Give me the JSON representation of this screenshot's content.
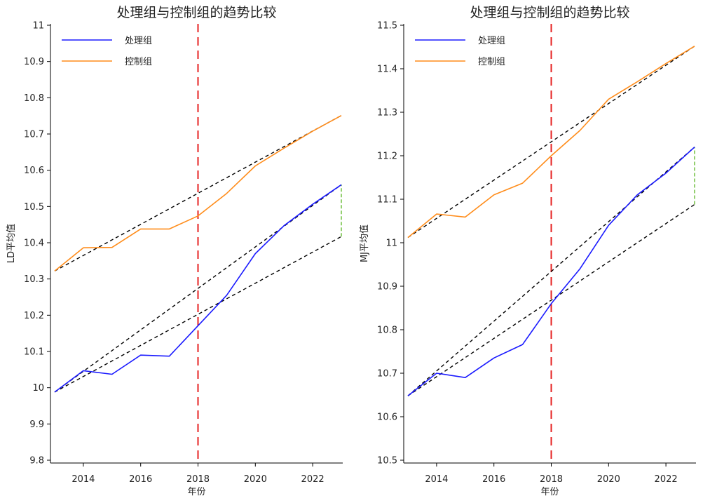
{
  "chart_data": [
    {
      "type": "line",
      "title": "处理组与控制组的趋势比较",
      "xlabel": "年份",
      "ylabel": "LD平均值",
      "xlim": [
        2013,
        2023
      ],
      "ylim": [
        9.8,
        11
      ],
      "x_ticks": [
        2014,
        2016,
        2018,
        2020,
        2022
      ],
      "y_ticks": [
        9.8,
        9.9,
        10,
        10.1,
        10.2,
        10.3,
        10.4,
        10.5,
        10.6,
        10.7,
        10.8,
        10.9,
        11
      ],
      "y_tick_labels": [
        "9.8",
        "9.9",
        "10",
        "10.1",
        "10.2",
        "10.3",
        "10.4",
        "10.5",
        "10.6",
        "10.7",
        "10.8",
        "10.9",
        "11"
      ],
      "legend": "top-left",
      "grid": false,
      "x": [
        2013,
        2014,
        2015,
        2016,
        2017,
        2018,
        2019,
        2020,
        2021,
        2022,
        2023
      ],
      "series": [
        {
          "name": "处理组",
          "color": "#1a1aff",
          "values": [
            9.988,
            10.047,
            10.037,
            10.09,
            10.087,
            10.171,
            10.255,
            10.37,
            10.447,
            10.506,
            10.56
          ]
        },
        {
          "name": "控制组",
          "color": "#ff8c1a",
          "values": [
            10.322,
            10.386,
            10.387,
            10.438,
            10.438,
            10.474,
            10.536,
            10.612,
            10.661,
            10.708,
            10.751
          ]
        }
      ],
      "trend_lines": [
        {
          "color": "#000000",
          "from": [
            2013,
            10.322
          ],
          "to": [
            2023,
            10.751
          ]
        },
        {
          "color": "#000000",
          "from": [
            2013,
            9.988
          ],
          "to": [
            2023,
            10.56
          ]
        },
        {
          "color": "#000000",
          "from": [
            2013,
            9.988
          ],
          "to": [
            2023,
            10.417
          ]
        }
      ],
      "gap_line": {
        "color": "#66bb33",
        "x": 2023,
        "from": 10.417,
        "to": 10.56
      },
      "event_line": {
        "color": "#e62222",
        "x": 2018
      }
    },
    {
      "type": "line",
      "title": "处理组与控制组的趋势比较",
      "xlabel": "年份",
      "ylabel": "MJ平均值",
      "xlim": [
        2013,
        2023
      ],
      "ylim": [
        10.5,
        11.5
      ],
      "x_ticks": [
        2014,
        2016,
        2018,
        2020,
        2022
      ],
      "y_ticks": [
        10.5,
        10.6,
        10.7,
        10.8,
        10.9,
        11,
        11.1,
        11.2,
        11.3,
        11.4,
        11.5
      ],
      "y_tick_labels": [
        "10.5",
        "10.6",
        "10.7",
        "10.8",
        "10.9",
        "11",
        "11.1",
        "11.2",
        "11.3",
        "11.4",
        "11.5"
      ],
      "legend": "top-left",
      "grid": false,
      "x": [
        2013,
        2014,
        2015,
        2016,
        2017,
        2018,
        2019,
        2020,
        2021,
        2022,
        2023
      ],
      "series": [
        {
          "name": "处理组",
          "color": "#1a1aff",
          "values": [
            10.648,
            10.7,
            10.69,
            10.735,
            10.766,
            10.86,
            10.94,
            11.04,
            11.11,
            11.16,
            11.22
          ]
        },
        {
          "name": "控制组",
          "color": "#ff8c1a",
          "values": [
            11.012,
            11.066,
            11.059,
            11.11,
            11.137,
            11.2,
            11.258,
            11.33,
            11.37,
            11.412,
            11.452
          ]
        }
      ],
      "trend_lines": [
        {
          "color": "#000000",
          "from": [
            2013,
            11.012
          ],
          "to": [
            2023,
            11.452
          ]
        },
        {
          "color": "#000000",
          "from": [
            2013,
            10.648
          ],
          "to": [
            2023,
            11.22
          ]
        },
        {
          "color": "#000000",
          "from": [
            2013,
            10.648
          ],
          "to": [
            2023,
            11.088
          ]
        }
      ],
      "gap_line": {
        "color": "#66bb33",
        "x": 2023,
        "from": 11.088,
        "to": 11.22
      },
      "event_line": {
        "color": "#e62222",
        "x": 2018
      }
    }
  ]
}
